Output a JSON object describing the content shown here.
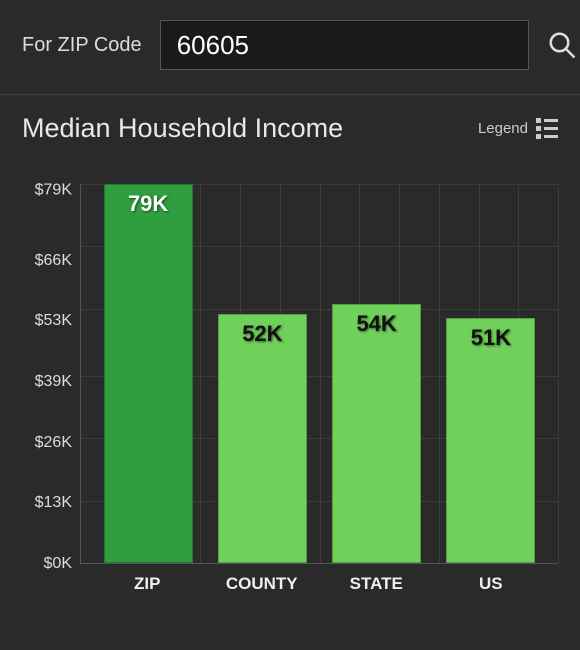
{
  "search": {
    "label": "For ZIP Code",
    "value": "60605"
  },
  "chart": {
    "title": "Median Household Income",
    "legend_label": "Legend",
    "type": "bar",
    "ylim": [
      0,
      79
    ],
    "yticks": [
      "$79K",
      "$66K",
      "$53K",
      "$39K",
      "$26K",
      "$13K",
      "$0K"
    ],
    "ytick_values": [
      79,
      66,
      53,
      39,
      26,
      13,
      0
    ],
    "categories": [
      "ZIP",
      "COUNTY",
      "STATE",
      "US"
    ],
    "values": [
      79,
      52,
      54,
      51
    ],
    "bar_labels": [
      "79K",
      "52K",
      "54K",
      "51K"
    ],
    "bar_colors": [
      "#2e9e3f",
      "#6fd05a",
      "#6fd05a",
      "#6fd05a"
    ],
    "bar_label_colors": [
      "#ffffff",
      "#111111",
      "#111111",
      "#111111"
    ],
    "grid_color": "#3c3c3c",
    "background_color": "#2a2a2a",
    "vgrid_count": 12,
    "bar_width": 0.78,
    "title_fontsize": 27,
    "label_fontsize": 16,
    "category_fontsize": 17,
    "bar_label_fontsize": 22
  }
}
